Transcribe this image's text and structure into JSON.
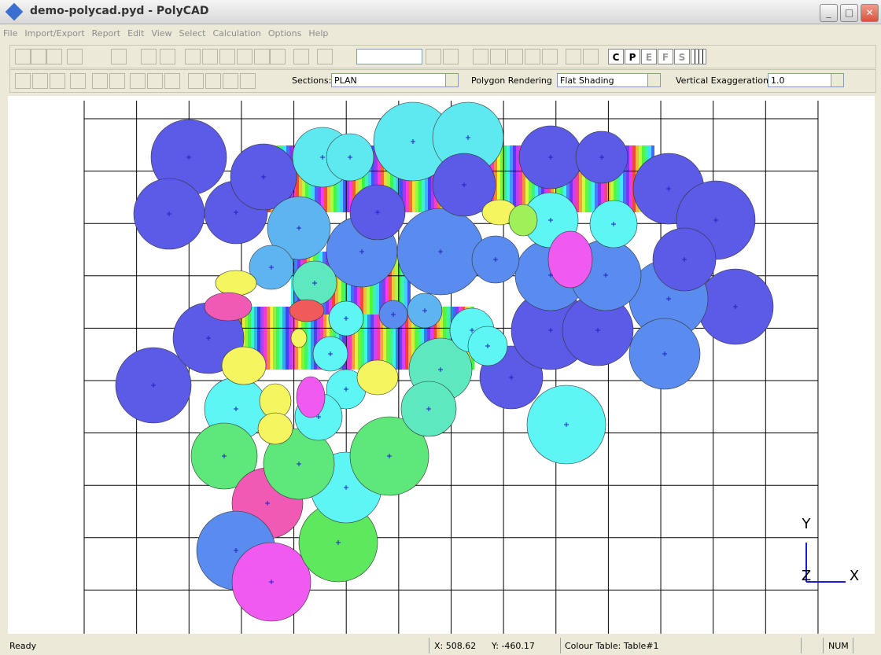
{
  "window": {
    "title": "demo-polycad.pyd - PolyCAD"
  },
  "menu": [
    "File",
    "Import/Export",
    "Report",
    "Edit",
    "View",
    "Select",
    "Calculation",
    "Options",
    "Help"
  ],
  "toolbar": {
    "view_buttons": [
      "C",
      "P",
      "E",
      "F",
      "S"
    ],
    "sections_label": "Sections:",
    "sections_value": "PLAN",
    "rendering_label": "Polygon Rendering",
    "rendering_value": "Flat Shading",
    "exaggeration_label": "Vertical Exaggeration",
    "exaggeration_value": "1.0"
  },
  "axes": [
    "Y",
    "Z",
    "X"
  ],
  "status": {
    "message": "Ready",
    "x": "X: 508.62",
    "y": "Y: -460.17",
    "colour_table": "Colour Table: Table#1",
    "num": "NUM"
  }
}
